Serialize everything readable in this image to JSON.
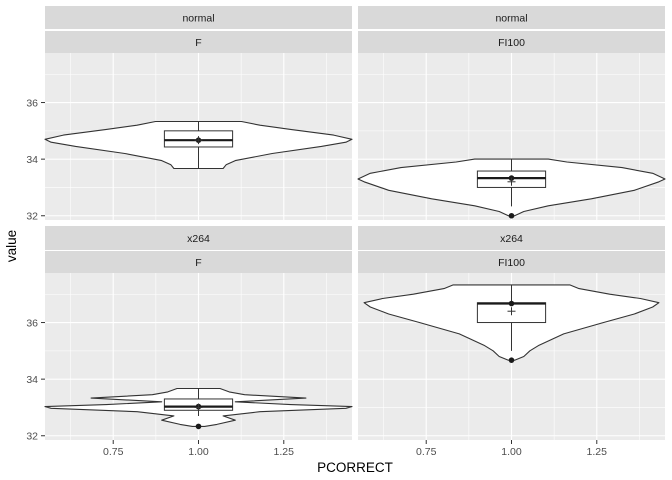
{
  "chart_data": {
    "type": "violin",
    "xlabel": "PCORRECT",
    "ylabel": "value",
    "x_ticks": [
      "0.75",
      "1.00",
      "1.25"
    ],
    "x_tick_values": [
      0.75,
      1.0,
      1.25
    ],
    "x_range": [
      0.55,
      1.45
    ],
    "y_ticks": [
      "32",
      "34",
      "36"
    ],
    "y_tick_values": [
      32,
      34,
      36
    ],
    "y_range": [
      31.85,
      37.75
    ],
    "grid": true,
    "colors": {
      "panel_bg": "#ebebeb",
      "strip_bg": "#d9d9d9",
      "grid_major": "#ffffff",
      "violin_fill": "#ffffff",
      "line": "#333333",
      "point": "#1a1a1a"
    },
    "panels": [
      {
        "strip_top": "normal",
        "strip_bottom": "F",
        "x": 1.0,
        "box": {
          "q1": 34.43,
          "median": 34.67,
          "q3": 35.0,
          "whisker_low": 33.67,
          "whisker_high": 35.33
        },
        "mean": 34.67,
        "points": [
          34.67
        ],
        "violin": [
          [
            33.67,
            0.08
          ],
          [
            33.8,
            0.09
          ],
          [
            33.95,
            0.12
          ],
          [
            34.2,
            0.24
          ],
          [
            34.45,
            0.4
          ],
          [
            34.6,
            0.48
          ],
          [
            34.7,
            0.5
          ],
          [
            34.85,
            0.44
          ],
          [
            35.05,
            0.3
          ],
          [
            35.2,
            0.2
          ],
          [
            35.33,
            0.14
          ]
        ]
      },
      {
        "strip_top": "normal",
        "strip_bottom": "FI100",
        "x": 1.0,
        "box": {
          "q1": 33.0,
          "median": 33.33,
          "q3": 33.58,
          "whisker_low": 32.33,
          "whisker_high": 34.0
        },
        "mean": 33.2,
        "points": [
          33.33,
          32.0
        ],
        "violin": [
          [
            32.0,
            0.01
          ],
          [
            32.15,
            0.04
          ],
          [
            32.35,
            0.12
          ],
          [
            32.6,
            0.26
          ],
          [
            32.9,
            0.4
          ],
          [
            33.2,
            0.48
          ],
          [
            33.3,
            0.5
          ],
          [
            33.5,
            0.46
          ],
          [
            33.7,
            0.36
          ],
          [
            33.9,
            0.18
          ],
          [
            34.0,
            0.12
          ]
        ]
      },
      {
        "strip_top": "x264",
        "strip_bottom": "F",
        "x": 1.0,
        "box": {
          "q1": 32.9,
          "median": 33.03,
          "q3": 33.3,
          "whisker_low": 32.7,
          "whisker_high": 33.67
        },
        "mean": 33.0,
        "points": [
          33.03,
          32.33
        ],
        "violin": [
          [
            32.33,
            0.02
          ],
          [
            32.4,
            0.06
          ],
          [
            32.55,
            0.12
          ],
          [
            32.7,
            0.08
          ],
          [
            32.85,
            0.2
          ],
          [
            32.97,
            0.48
          ],
          [
            33.03,
            0.5
          ],
          [
            33.1,
            0.3
          ],
          [
            33.2,
            0.12
          ],
          [
            33.33,
            0.35
          ],
          [
            33.45,
            0.15
          ],
          [
            33.55,
            0.1
          ],
          [
            33.67,
            0.07
          ]
        ]
      },
      {
        "strip_top": "x264",
        "strip_bottom": "FI100",
        "x": 1.0,
        "box": {
          "q1": 36.0,
          "median": 36.67,
          "q3": 36.7,
          "whisker_low": 35.0,
          "whisker_high": 37.33
        },
        "mean": 36.4,
        "points": [
          36.67,
          34.67
        ],
        "violin": [
          [
            34.67,
            0.01
          ],
          [
            34.8,
            0.04
          ],
          [
            35.0,
            0.06
          ],
          [
            35.2,
            0.09
          ],
          [
            35.6,
            0.17
          ],
          [
            36.0,
            0.3
          ],
          [
            36.3,
            0.4
          ],
          [
            36.55,
            0.46
          ],
          [
            36.7,
            0.48
          ],
          [
            36.85,
            0.42
          ],
          [
            37.0,
            0.32
          ],
          [
            37.2,
            0.22
          ],
          [
            37.33,
            0.19
          ]
        ]
      }
    ]
  }
}
